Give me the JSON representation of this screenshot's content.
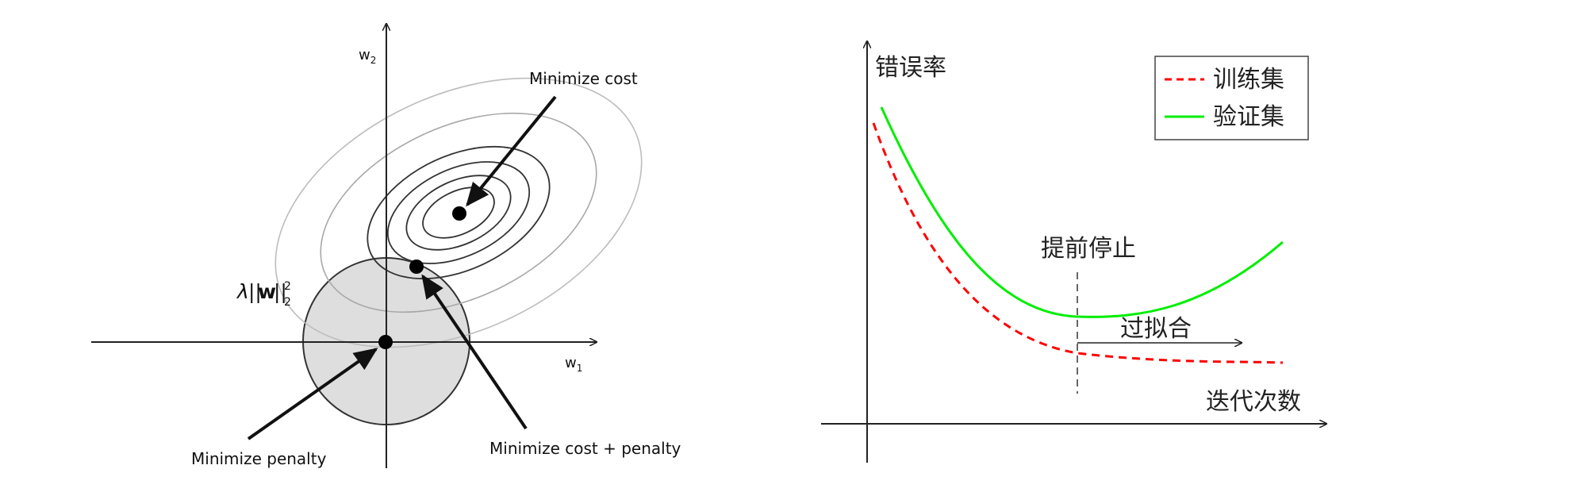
{
  "left_panel": {
    "axis_x_var": "w",
    "axis_x_sub": "1",
    "axis_y_var": "w",
    "axis_y_sub": "2",
    "minimize_cost": "Minimize cost",
    "minimize_penalty": "Minimize penalty",
    "minimize_cost_penalty": "Minimize cost + penalty",
    "penalty_lambda": "λ",
    "penalty_open": "||",
    "penalty_w": "w",
    "penalty_close": "||",
    "penalty_sup": "2",
    "penalty_sub": "2",
    "colors": {
      "penalty_region": "#dedede",
      "contour_outer": "#bdbdbd",
      "contour_inner": "#333333"
    }
  },
  "right_panel": {
    "ylabel": "错误率",
    "xlabel": "迭代次数",
    "early_stop": "提前停止",
    "overfit": "过拟合",
    "legend": {
      "train": "训练集",
      "val": "验证集"
    },
    "colors": {
      "train": "#ff0000",
      "val": "#00ee00"
    }
  }
}
